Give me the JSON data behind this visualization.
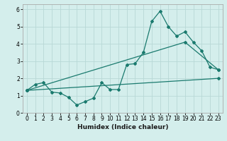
{
  "xlabel": "Humidex (Indice chaleur)",
  "bg_color": "#d4eeec",
  "grid_color": "#b8d8d6",
  "line_color": "#1a7a6e",
  "xlim": [
    -0.5,
    23.5
  ],
  "ylim": [
    0,
    6.3
  ],
  "xticks": [
    0,
    1,
    2,
    3,
    4,
    5,
    6,
    7,
    8,
    9,
    10,
    11,
    12,
    13,
    14,
    15,
    16,
    17,
    18,
    19,
    20,
    21,
    22,
    23
  ],
  "yticks": [
    0,
    1,
    2,
    3,
    4,
    5,
    6
  ],
  "line1_x": [
    0,
    1,
    2,
    3,
    4,
    5,
    6,
    7,
    8,
    9,
    10,
    11,
    12,
    13,
    14,
    15,
    16,
    17,
    18,
    19,
    20,
    21,
    22,
    23
  ],
  "line1_y": [
    1.3,
    1.65,
    1.75,
    1.2,
    1.15,
    0.9,
    0.45,
    0.65,
    0.85,
    1.75,
    1.35,
    1.35,
    2.8,
    2.85,
    3.5,
    5.3,
    5.9,
    5.0,
    4.45,
    4.7,
    4.1,
    3.6,
    2.65,
    2.5
  ],
  "line2_x": [
    0,
    23
  ],
  "line2_y": [
    1.3,
    2.0
  ],
  "line3_x": [
    0,
    19,
    23
  ],
  "line3_y": [
    1.3,
    4.1,
    2.5
  ],
  "marker": "D",
  "markersize": 2.0,
  "linewidth": 0.9,
  "tick_fontsize": 5.5,
  "xlabel_fontsize": 6.5
}
